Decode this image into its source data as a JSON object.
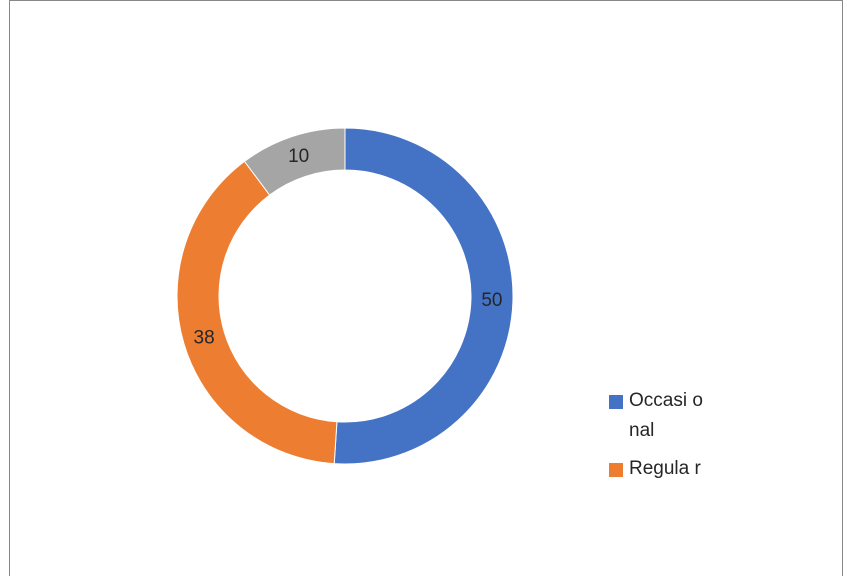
{
  "chart_data": {
    "type": "pie",
    "donut": true,
    "slices": [
      {
        "name": "Occasional",
        "value": 50,
        "label": "50",
        "color": "#4472C4"
      },
      {
        "name": "Regular",
        "value": 38,
        "label": "38",
        "color": "#ED7D31"
      },
      {
        "name": "",
        "value": 10,
        "label": "10",
        "color": "#A5A5A5"
      }
    ],
    "legend": {
      "placement": "right",
      "entries": [
        {
          "text": "Occasional",
          "display": "Occasi onal",
          "color": "#4472C4"
        },
        {
          "text": "Regular",
          "display": "Regula r",
          "color": "#ED7D31"
        }
      ]
    }
  }
}
